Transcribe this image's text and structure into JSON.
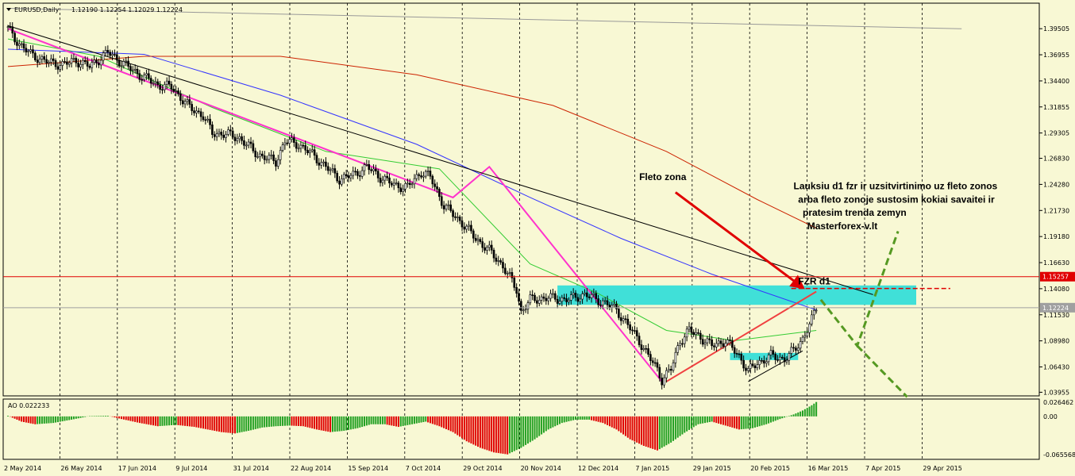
{
  "header": {
    "symbol_label": "EURUSD,Daily",
    "ohlc_text": "1.12190 1.12254 1.12029 1.12224"
  },
  "indicator": {
    "label": "AO 0.022233",
    "scale": [
      "0.026462",
      "0.00",
      "-0.065568"
    ]
  },
  "chart_data": {
    "type": "candlestick",
    "symbol": "EURUSD",
    "timeframe": "Daily",
    "last_ohlc": {
      "open": 1.1219,
      "high": 1.12254,
      "low": 1.12029,
      "close": 1.12224
    },
    "y_ticks": [
      1.39505,
      1.36955,
      1.344,
      1.31855,
      1.29305,
      1.2683,
      1.2428,
      1.2173,
      1.1918,
      1.1663,
      1.1408,
      1.1153,
      1.0898,
      1.0643,
      1.03955
    ],
    "y_tick_labels": [
      "1.39505",
      "1.36955",
      "1.34400",
      "1.31855",
      "1.29305",
      "1.26830",
      "1.24280",
      "1.21730",
      "1.19180",
      "1.16630",
      "1.14080",
      "1.11530",
      "1.08980",
      "1.06430",
      "1.03955"
    ],
    "ylim": [
      1.036,
      1.42
    ],
    "x_tick_labels": [
      "2 May 2014",
      "26 May 2014",
      "17 Jun 2014",
      "9 Jul 2014",
      "31 Jul 2014",
      "22 Aug 2014",
      "15 Sep 2014",
      "7 Oct 2014",
      "29 Oct 2014",
      "20 Nov 2014",
      "12 Dec 2014",
      "7 Jan 2015",
      "29 Jan 2015",
      "20 Feb 2015",
      "16 Mar 2015",
      "7 Apr 2015",
      "29 Apr 2015"
    ],
    "price_tags": [
      {
        "value": 1.15257,
        "label": "1.15257",
        "color": "#e00000"
      },
      {
        "value": 1.12224,
        "label": "1.12224",
        "color": "#a0a0a0"
      }
    ],
    "close_path": [
      [
        0,
        1.395
      ],
      [
        5,
        1.38
      ],
      [
        10,
        1.37
      ],
      [
        18,
        1.362
      ],
      [
        24,
        1.36
      ],
      [
        30,
        1.364
      ],
      [
        36,
        1.358
      ],
      [
        44,
        1.372
      ],
      [
        50,
        1.362
      ],
      [
        58,
        1.35
      ],
      [
        66,
        1.34
      ],
      [
        72,
        1.338
      ],
      [
        80,
        1.318
      ],
      [
        86,
        1.31
      ],
      [
        90,
        1.293
      ],
      [
        96,
        1.292
      ],
      [
        102,
        1.288
      ],
      [
        110,
        1.272
      ],
      [
        118,
        1.265
      ],
      [
        122,
        1.285
      ],
      [
        128,
        1.282
      ],
      [
        134,
        1.272
      ],
      [
        140,
        1.26
      ],
      [
        146,
        1.248
      ],
      [
        152,
        1.252
      ],
      [
        158,
        1.26
      ],
      [
        164,
        1.25
      ],
      [
        170,
        1.242
      ],
      [
        176,
        1.24
      ],
      [
        182,
        1.255
      ],
      [
        186,
        1.25
      ],
      [
        192,
        1.222
      ],
      [
        200,
        1.205
      ],
      [
        206,
        1.19
      ],
      [
        212,
        1.178
      ],
      [
        218,
        1.163
      ],
      [
        224,
        1.14
      ],
      [
        226,
        1.118
      ],
      [
        230,
        1.13
      ],
      [
        238,
        1.132
      ],
      [
        246,
        1.13
      ],
      [
        254,
        1.135
      ],
      [
        262,
        1.128
      ],
      [
        268,
        1.12
      ],
      [
        272,
        1.108
      ],
      [
        278,
        1.09
      ],
      [
        282,
        1.075
      ],
      [
        286,
        1.062
      ],
      [
        288,
        1.052
      ],
      [
        292,
        1.062
      ],
      [
        296,
        1.09
      ],
      [
        300,
        1.1
      ],
      [
        304,
        1.095
      ],
      [
        310,
        1.085
      ],
      [
        316,
        1.09
      ],
      [
        322,
        1.075
      ],
      [
        326,
        1.06
      ],
      [
        330,
        1.068
      ],
      [
        336,
        1.075
      ],
      [
        342,
        1.072
      ],
      [
        346,
        1.08
      ],
      [
        350,
        1.092
      ],
      [
        354,
        1.11
      ],
      [
        356,
        1.122
      ]
    ],
    "trend_lines": [
      {
        "name": "pink-zigzag",
        "color": "#ff33cc",
        "points": [
          [
            0,
            1.395
          ],
          [
            196,
            1.23
          ],
          [
            212,
            1.26
          ],
          [
            288,
            1.05
          ]
        ]
      },
      {
        "name": "black-resistance",
        "color": "#000000",
        "points": [
          [
            0,
            1.398
          ],
          [
            381,
            1.135
          ]
        ]
      },
      {
        "name": "red-rise",
        "color": "#f04040",
        "points": [
          [
            290,
            1.05
          ],
          [
            356,
            1.138
          ]
        ]
      },
      {
        "name": "black-support",
        "color": "#000000",
        "points": [
          [
            326,
            1.05
          ],
          [
            350,
            1.08
          ]
        ]
      },
      {
        "name": "gray-top",
        "color": "#999999",
        "points": [
          [
            0,
            1.415
          ],
          [
            420,
            1.395
          ]
        ]
      }
    ],
    "moving_averages": [
      {
        "name": "green-ma",
        "color": "#33cc33",
        "points": [
          [
            0,
            1.385
          ],
          [
            40,
            1.368
          ],
          [
            90,
            1.318
          ],
          [
            140,
            1.275
          ],
          [
            190,
            1.258
          ],
          [
            230,
            1.165
          ],
          [
            260,
            1.136
          ],
          [
            290,
            1.1
          ],
          [
            320,
            1.09
          ],
          [
            356,
            1.1
          ]
        ]
      },
      {
        "name": "blue-ma",
        "color": "#3333ff",
        "points": [
          [
            0,
            1.375
          ],
          [
            60,
            1.37
          ],
          [
            120,
            1.33
          ],
          [
            180,
            1.282
          ],
          [
            230,
            1.23
          ],
          [
            270,
            1.19
          ],
          [
            310,
            1.155
          ],
          [
            356,
            1.12
          ]
        ]
      },
      {
        "name": "red-ma",
        "color": "#cc2200",
        "points": [
          [
            0,
            1.358
          ],
          [
            60,
            1.368
          ],
          [
            120,
            1.368
          ],
          [
            180,
            1.35
          ],
          [
            240,
            1.32
          ],
          [
            290,
            1.275
          ],
          [
            330,
            1.228
          ],
          [
            356,
            1.2
          ]
        ]
      }
    ],
    "zones": [
      {
        "name": "fleto-zone",
        "x_start": 242,
        "x_end": 400,
        "y_top": 1.144,
        "y_bottom": 1.125,
        "color": "#40e0d8"
      },
      {
        "name": "small-zone",
        "x_start": 318,
        "x_end": 348,
        "y_top": 1.078,
        "y_bottom": 1.071,
        "color": "#40e0d8"
      }
    ],
    "dashed_level": {
      "x_start": 345,
      "x_end": 415,
      "value": 1.141,
      "color": "#e00000"
    },
    "annotations": [
      {
        "text": "Fleto zona",
        "x": 278,
        "y": 1.247
      },
      {
        "text": "Lauksiu d1 fzr ir uzsitvirtinimo uz fleto zonos",
        "x": 346,
        "y": 1.238
      },
      {
        "text": "arba fleto zonoje sustosim kokiai savaitei ir",
        "x": 348,
        "y": 1.225
      },
      {
        "text": "pratesim trenda zemyn",
        "x": 350,
        "y": 1.212
      },
      {
        "text": "Masterforex-v.lt",
        "x": 352,
        "y": 1.199
      },
      {
        "text": "FZR d1",
        "x": 348,
        "y": 1.145
      }
    ],
    "arrow": {
      "from": [
        294,
        1.235
      ],
      "to": [
        350,
        1.142
      ],
      "color": "#e00000"
    },
    "projection": [
      {
        "color": "#559922",
        "points": [
          [
            358,
            1.13
          ],
          [
            374,
            1.085
          ],
          [
            392,
            1.197
          ]
        ]
      },
      {
        "color": "#559922",
        "points": [
          [
            374,
            1.085
          ],
          [
            396,
            1.035
          ]
        ]
      }
    ],
    "indicator_data": {
      "name": "AO",
      "value": 0.022233,
      "ylim": [
        -0.0656,
        0.0265
      ],
      "histogram": [
        [
          0,
          0.001
        ],
        [
          6,
          -0.008
        ],
        [
          12,
          -0.012
        ],
        [
          20,
          -0.01
        ],
        [
          28,
          -0.005
        ],
        [
          36,
          0.0005
        ],
        [
          44,
          0.001
        ],
        [
          50,
          -0.004
        ],
        [
          58,
          -0.01
        ],
        [
          66,
          -0.015
        ],
        [
          74,
          -0.013
        ],
        [
          82,
          -0.016
        ],
        [
          88,
          -0.02
        ],
        [
          94,
          -0.024
        ],
        [
          100,
          -0.026
        ],
        [
          106,
          -0.022
        ],
        [
          112,
          -0.017
        ],
        [
          118,
          -0.015
        ],
        [
          124,
          -0.014
        ],
        [
          130,
          -0.015
        ],
        [
          136,
          -0.02
        ],
        [
          142,
          -0.024
        ],
        [
          148,
          -0.022
        ],
        [
          154,
          -0.018
        ],
        [
          160,
          -0.012
        ],
        [
          166,
          -0.012
        ],
        [
          172,
          -0.016
        ],
        [
          178,
          -0.012
        ],
        [
          184,
          -0.008
        ],
        [
          190,
          -0.015
        ],
        [
          196,
          -0.024
        ],
        [
          202,
          -0.038
        ],
        [
          208,
          -0.048
        ],
        [
          214,
          -0.055
        ],
        [
          220,
          -0.058
        ],
        [
          226,
          -0.048
        ],
        [
          232,
          -0.035
        ],
        [
          238,
          -0.02
        ],
        [
          244,
          -0.01
        ],
        [
          250,
          -0.005
        ],
        [
          256,
          -0.005
        ],
        [
          262,
          -0.01
        ],
        [
          268,
          -0.02
        ],
        [
          274,
          -0.035
        ],
        [
          280,
          -0.045
        ],
        [
          286,
          -0.052
        ],
        [
          292,
          -0.04
        ],
        [
          298,
          -0.025
        ],
        [
          304,
          -0.012
        ],
        [
          310,
          -0.008
        ],
        [
          316,
          -0.014
        ],
        [
          322,
          -0.02
        ],
        [
          328,
          -0.018
        ],
        [
          334,
          -0.012
        ],
        [
          340,
          -0.004
        ],
        [
          346,
          0.003
        ],
        [
          350,
          0.009
        ],
        [
          354,
          0.017
        ],
        [
          356,
          0.022
        ]
      ]
    }
  }
}
